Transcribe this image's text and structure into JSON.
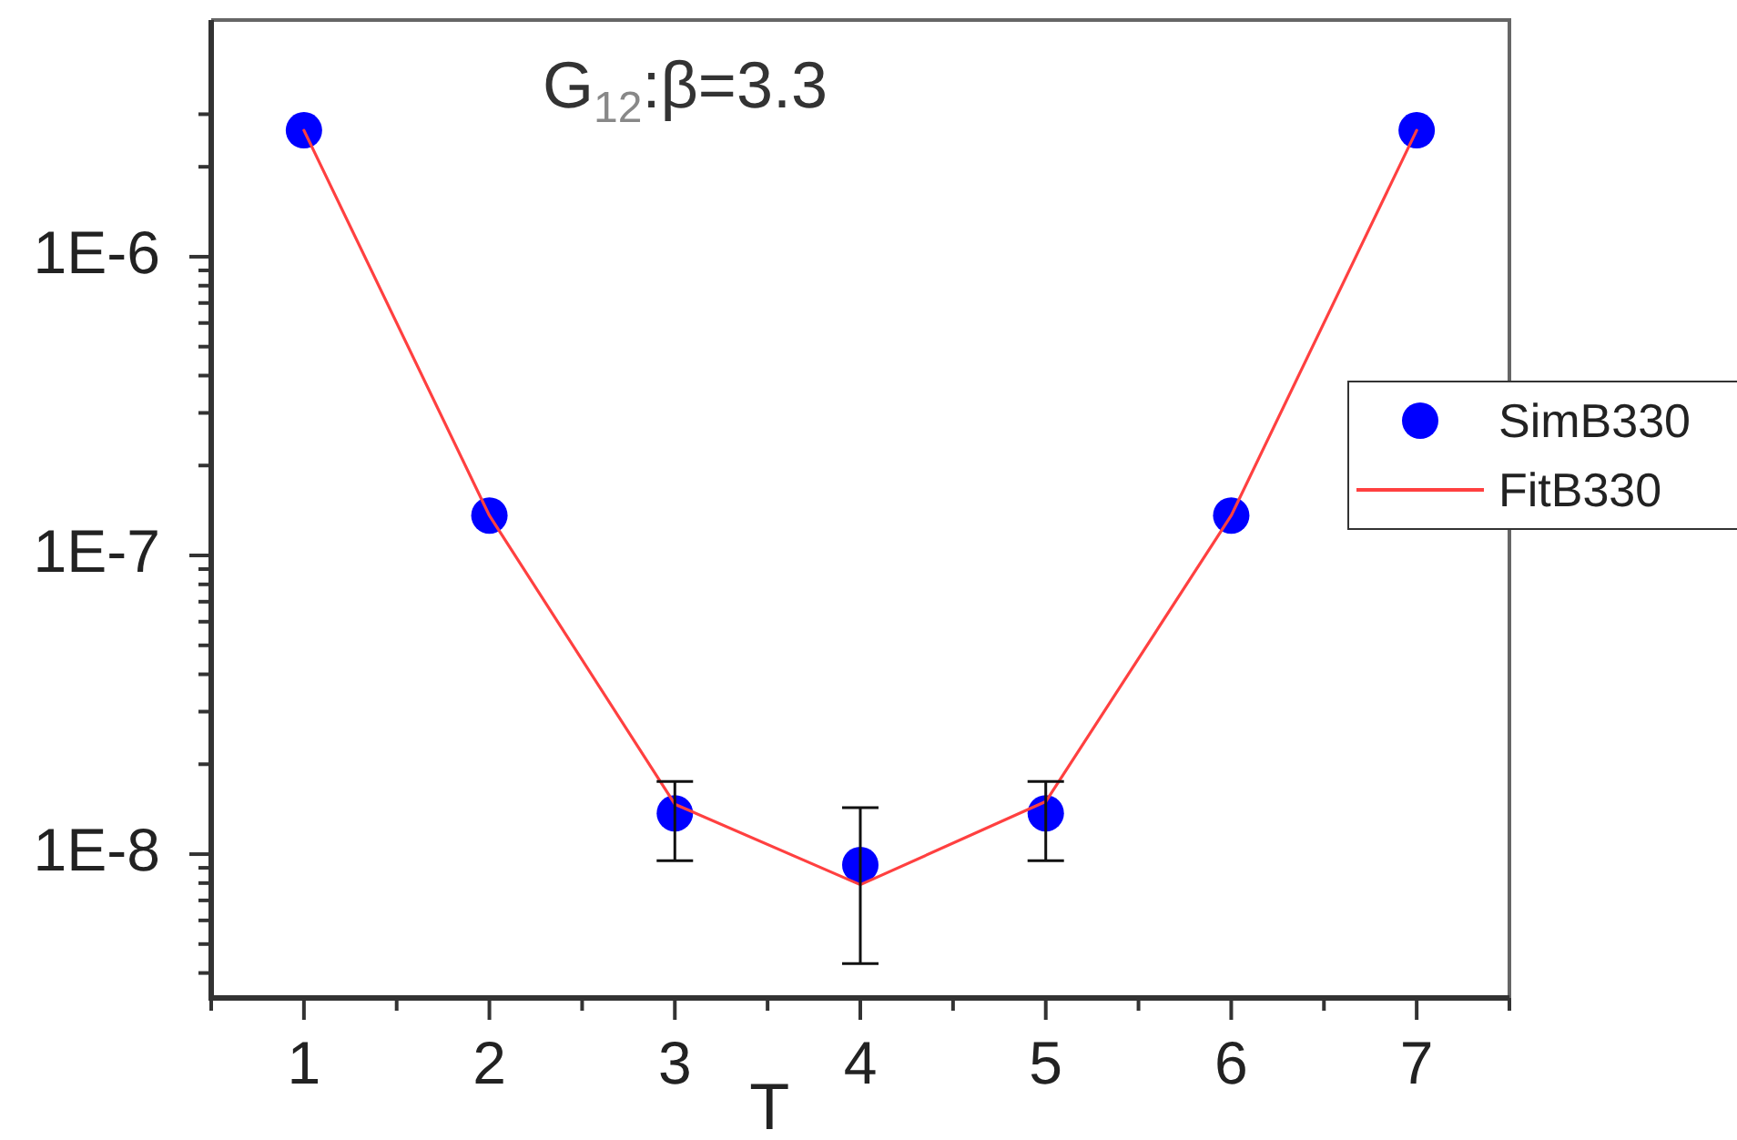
{
  "chart_data": {
    "type": "scatter",
    "title": "G$_{12}$:β=3.3",
    "xlabel": "T",
    "x": [
      1,
      2,
      3,
      4,
      5,
      6,
      7
    ],
    "series": [
      {
        "name": "SimB330",
        "color": "#0000ff",
        "marker": "circle",
        "values": [
          2.65e-06,
          1.36e-07,
          1.37e-08,
          9.2e-09,
          1.37e-08,
          1.36e-07,
          2.65e-06
        ],
        "errors": [
          null,
          null,
          [
            9.5e-09,
            1.75e-08
          ],
          [
            4.3e-09,
            1.43e-08
          ],
          [
            9.5e-09,
            1.75e-08
          ],
          null,
          null
        ]
      },
      {
        "name": "FitB330",
        "type": "line",
        "color": "#ff4040",
        "line_style": "solid",
        "values": [
          2.65e-06,
          1.36e-07,
          1.47e-08,
          7.9e-09,
          1.5e-08,
          1.36e-07,
          2.65e-06
        ]
      }
    ],
    "xlim": [
      0.5,
      7.5
    ],
    "xticks": [
      {
        "value": 0.5,
        "label": null
      },
      1,
      {
        "value": 1.5,
        "label": null
      },
      2,
      {
        "value": 2.5,
        "label": null
      },
      3,
      {
        "value": 3.5,
        "label": null
      },
      4,
      {
        "value": 4.5,
        "label": null
      },
      5,
      {
        "value": 5.5,
        "label": null
      },
      6,
      {
        "value": 6.5,
        "label": null
      },
      7,
      {
        "value": 7.5,
        "label": null
      }
    ],
    "ylim": [
      3.3e-09,
      6.2e-06
    ],
    "yticks": [
      {
        "value": 4e-09,
        "label": null
      },
      {
        "value": 5e-09,
        "label": null
      },
      {
        "value": 6e-09,
        "label": null
      },
      {
        "value": 7e-09,
        "label": null
      },
      {
        "value": 8e-09,
        "label": null
      },
      {
        "value": 9e-09,
        "label": null
      },
      {
        "value": 1e-08,
        "label": "1E-8"
      },
      {
        "value": 2e-08,
        "label": null
      },
      {
        "value": 3e-08,
        "label": null
      },
      {
        "value": 4e-08,
        "label": null
      },
      {
        "value": 5e-08,
        "label": null
      },
      {
        "value": 6e-08,
        "label": null
      },
      {
        "value": 7e-08,
        "label": null
      },
      {
        "value": 8e-08,
        "label": null
      },
      {
        "value": 9e-08,
        "label": null
      },
      {
        "value": 1e-07,
        "label": "1E-7"
      },
      {
        "value": 2e-07,
        "label": null
      },
      {
        "value": 3e-07,
        "label": null
      },
      {
        "value": 4e-07,
        "label": null
      },
      {
        "value": 5e-07,
        "label": null
      },
      {
        "value": 6e-07,
        "label": null
      },
      {
        "value": 7e-07,
        "label": null
      },
      {
        "value": 8e-07,
        "label": null
      },
      {
        "value": 9e-07,
        "label": null
      },
      {
        "value": 1e-06,
        "label": "1E-6"
      },
      {
        "value": 2e-06,
        "label": null
      },
      {
        "value": 3e-06,
        "label": null
      }
    ],
    "log": "y",
    "legend": "right"
  }
}
